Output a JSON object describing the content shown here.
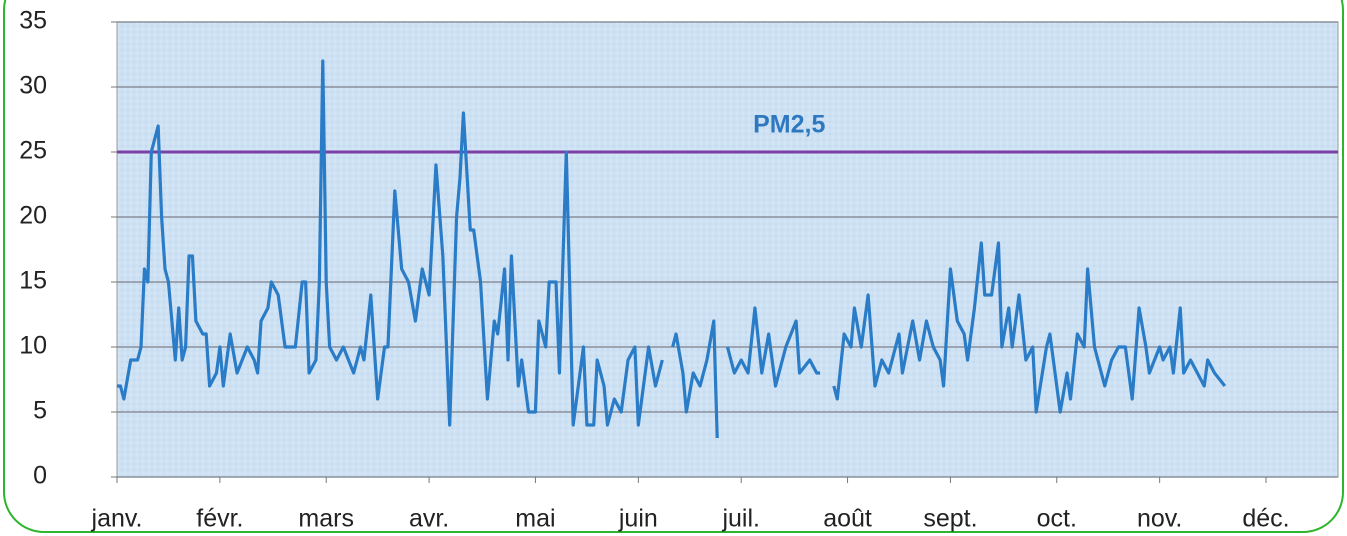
{
  "chart_data": {
    "type": "line",
    "xlim": [
      0,
      356
    ],
    "xticks": [
      {
        "value": 0,
        "label": "janv."
      },
      {
        "value": 30,
        "label": "févr."
      },
      {
        "value": 61,
        "label": "mars"
      },
      {
        "value": 91,
        "label": "avr."
      },
      {
        "value": 122,
        "label": "mai"
      },
      {
        "value": 152,
        "label": "juin"
      },
      {
        "value": 182,
        "label": "juil."
      },
      {
        "value": 213,
        "label": "août"
      },
      {
        "value": 243,
        "label": "sept."
      },
      {
        "value": 274,
        "label": "oct."
      },
      {
        "value": 304,
        "label": "nov."
      },
      {
        "value": 335,
        "label": "déc."
      }
    ],
    "ylim": [
      0,
      35
    ],
    "yticks": [
      0,
      5,
      10,
      15,
      20,
      25,
      30,
      35
    ],
    "grid": true,
    "threshold": {
      "value": 25,
      "color": "#7b3fa6"
    },
    "annotation": {
      "text": "PM2,5",
      "x": 196,
      "y": 27,
      "color": "#2e78c0"
    },
    "series": [
      {
        "color": "#2a7cc7",
        "x": [
          0,
          1,
          2,
          4,
          6,
          7,
          8,
          9,
          10,
          12,
          13,
          14,
          15,
          17,
          18,
          19,
          20,
          21,
          22,
          23,
          25,
          26,
          27,
          29,
          30,
          31,
          33,
          35,
          38,
          40,
          41,
          42,
          44,
          45,
          47,
          48,
          49,
          52,
          54,
          55,
          56,
          58,
          59,
          60,
          61,
          62,
          64,
          66,
          69,
          71,
          72,
          74,
          76,
          78,
          79,
          81,
          83,
          85,
          87,
          89,
          91,
          93,
          95,
          97,
          99,
          100,
          101,
          103,
          104,
          106,
          108,
          110,
          111,
          113,
          114,
          115,
          117,
          118,
          120,
          122,
          123,
          125,
          126,
          128,
          129,
          131,
          133,
          136,
          137,
          139,
          140,
          142,
          143,
          145,
          147,
          149,
          151,
          152,
          155,
          157,
          159,
          160,
          162,
          163,
          165,
          166,
          168,
          170,
          172,
          174,
          175,
          176,
          178,
          180,
          182,
          184,
          186,
          188,
          190,
          192,
          195,
          198,
          199,
          202,
          204,
          205,
          207,
          209,
          210,
          212,
          214,
          215,
          217,
          219,
          221,
          223,
          225,
          228,
          229,
          232,
          234,
          236,
          238,
          240,
          241,
          243,
          245,
          247,
          248,
          250,
          252,
          253,
          255,
          257,
          258,
          260,
          261,
          263,
          265,
          267,
          268,
          271,
          272,
          275,
          277,
          278,
          280,
          282,
          283,
          285,
          287,
          288,
          290,
          292,
          294,
          296,
          298,
          300,
          301,
          304,
          305,
          307,
          308,
          310,
          311,
          313,
          315,
          317,
          318,
          320,
          323
        ],
        "values": [
          7,
          7,
          6,
          9,
          9,
          10,
          16,
          15,
          25,
          27,
          20,
          16,
          15,
          9,
          13,
          9,
          10,
          17,
          17,
          12,
          11,
          11,
          7,
          8,
          10,
          7,
          11,
          8,
          10,
          9,
          8,
          12,
          13,
          15,
          14,
          12,
          10,
          10,
          15,
          15,
          8,
          9,
          15,
          32,
          15,
          10,
          9,
          10,
          8,
          10,
          9,
          14,
          6,
          10,
          10,
          22,
          16,
          15,
          12,
          16,
          14,
          24,
          17,
          4,
          20,
          23,
          28,
          19,
          19,
          15,
          6,
          12,
          11,
          16,
          9,
          17,
          7,
          9,
          5,
          5,
          12,
          10,
          15,
          15,
          8,
          25,
          4,
          10,
          4,
          4,
          9,
          7,
          4,
          6,
          5,
          9,
          10,
          4,
          10,
          7,
          9,
          null,
          10,
          11,
          8,
          5,
          8,
          7,
          9,
          12,
          3,
          null,
          10,
          8,
          9,
          8,
          13,
          8,
          11,
          7,
          10,
          12,
          8,
          9,
          8,
          8,
          null,
          7,
          6,
          11,
          10,
          13,
          10,
          14,
          7,
          9,
          8,
          11,
          8,
          12,
          9,
          12,
          10,
          9,
          7,
          16,
          12,
          11,
          9,
          13,
          18,
          14,
          14,
          18,
          10,
          13,
          10,
          14,
          9,
          10,
          5,
          10,
          11,
          5,
          8,
          6,
          11,
          10,
          16,
          10,
          8,
          7,
          9,
          10,
          10,
          6,
          13,
          10,
          8,
          10,
          9,
          10,
          8,
          13,
          8,
          9,
          8,
          7,
          9,
          8,
          7
        ]
      }
    ]
  }
}
